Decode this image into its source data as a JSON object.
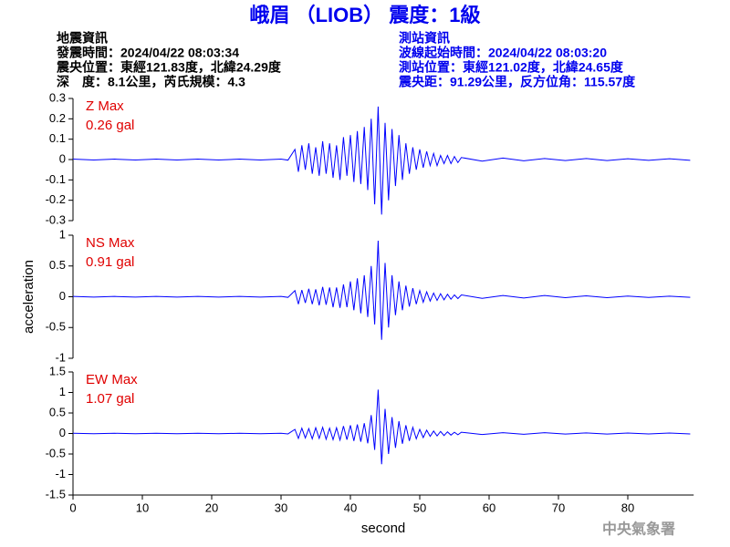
{
  "title": "峨眉 （LIOB） 震度：1級",
  "quake_info": [
    "地震資訊",
    "發震時間：2024/04/22 08:03:34",
    "震央位置：東經121.83度，北緯24.29度",
    "深　度：8.1公里，芮氏規模：4.3"
  ],
  "station_info": [
    "測站資訊",
    "波線起始時間：2024/04/22 08:03:20",
    "測站位置：東經121.02度，北緯24.65度",
    "震央距：91.29公里，反方位角：115.57度"
  ],
  "footer": "中央氣象署",
  "chart_data": [
    {
      "type": "line",
      "max_label": "Z Max",
      "max_value": "0.26 gal",
      "color": "#0000ff",
      "xlim": [
        0,
        89.5
      ],
      "ylim": [
        -0.3,
        0.3
      ],
      "yticks": [
        -0.3,
        -0.2,
        -0.1,
        0,
        0.1,
        0.2,
        0.3
      ],
      "x": [
        0,
        3,
        6,
        9,
        12,
        15,
        18,
        21,
        24,
        27,
        30,
        31,
        32,
        32.5,
        33,
        33.5,
        34,
        34.5,
        35,
        35.5,
        36,
        36.5,
        37,
        37.5,
        38,
        38.5,
        39,
        39.5,
        40,
        40.5,
        41,
        41.5,
        42,
        42.5,
        43,
        43.5,
        44,
        44.5,
        45,
        45.5,
        46,
        46.5,
        47,
        47.5,
        48,
        48.5,
        49,
        49.5,
        50,
        50.5,
        51,
        51.5,
        52,
        52.5,
        53,
        53.5,
        54,
        54.5,
        55,
        55.5,
        56,
        59,
        62,
        65,
        68,
        71,
        74,
        77,
        80,
        83,
        86,
        89
      ],
      "values": [
        0.002,
        -0.002,
        0.002,
        -0.002,
        0.002,
        -0.002,
        0.002,
        -0.002,
        0.002,
        -0.002,
        0.002,
        -0.003,
        0.05,
        -0.06,
        0.07,
        -0.05,
        0.08,
        -0.07,
        0.06,
        -0.08,
        0.09,
        -0.07,
        0.08,
        -0.09,
        0.07,
        -0.1,
        0.11,
        -0.08,
        0.12,
        -0.11,
        0.14,
        -0.12,
        0.16,
        -0.15,
        0.2,
        -0.22,
        0.26,
        -0.27,
        0.18,
        -0.2,
        0.15,
        -0.13,
        0.12,
        -0.1,
        0.08,
        -0.07,
        0.06,
        -0.05,
        0.05,
        -0.04,
        0.04,
        -0.03,
        0.03,
        -0.03,
        0.02,
        -0.02,
        0.02,
        -0.02,
        0.015,
        -0.015,
        0.01,
        -0.008,
        0.007,
        -0.006,
        0.005,
        -0.005,
        0.005,
        -0.005,
        0.004,
        -0.004,
        0.004,
        -0.004
      ]
    },
    {
      "type": "line",
      "max_label": "NS Max",
      "max_value": "0.91 gal",
      "ylabel": "acceleration",
      "color": "#0000ff",
      "xlim": [
        0,
        89.5
      ],
      "ylim": [
        -1,
        1
      ],
      "yticks": [
        -1,
        -0.5,
        0,
        0.5,
        1
      ],
      "x": [
        0,
        3,
        6,
        9,
        12,
        15,
        18,
        21,
        24,
        27,
        30,
        31,
        32,
        32.5,
        33,
        33.5,
        34,
        34.5,
        35,
        35.5,
        36,
        36.5,
        37,
        37.5,
        38,
        38.5,
        39,
        39.5,
        40,
        40.5,
        41,
        41.5,
        42,
        42.5,
        43,
        43.5,
        44,
        44.5,
        45,
        45.5,
        46,
        46.5,
        47,
        47.5,
        48,
        48.5,
        49,
        49.5,
        50,
        50.5,
        51,
        51.5,
        52,
        52.5,
        53,
        53.5,
        54,
        54.5,
        55,
        55.5,
        56,
        59,
        62,
        65,
        68,
        71,
        74,
        77,
        80,
        83,
        86,
        89
      ],
      "values": [
        0.005,
        -0.005,
        0.005,
        -0.005,
        0.005,
        -0.005,
        0.005,
        -0.005,
        0.005,
        -0.005,
        0.005,
        -0.01,
        0.1,
        -0.12,
        0.11,
        -0.1,
        0.13,
        -0.12,
        0.12,
        -0.14,
        0.16,
        -0.13,
        0.15,
        -0.17,
        0.15,
        -0.18,
        0.2,
        -0.17,
        0.25,
        -0.22,
        0.3,
        -0.27,
        0.35,
        -0.33,
        0.5,
        -0.45,
        0.91,
        -0.7,
        0.55,
        -0.5,
        0.35,
        -0.3,
        0.25,
        -0.22,
        0.18,
        -0.16,
        0.14,
        -0.12,
        0.1,
        -0.09,
        0.08,
        -0.07,
        0.06,
        -0.06,
        0.05,
        -0.05,
        0.04,
        -0.04,
        0.03,
        -0.03,
        0.03,
        -0.025,
        0.02,
        -0.02,
        0.02,
        -0.015,
        0.015,
        -0.015,
        0.012,
        -0.012,
        0.01,
        -0.01
      ]
    },
    {
      "type": "line",
      "max_label": "EW Max",
      "max_value": "1.07 gal",
      "xlabel": "second",
      "color": "#0000ff",
      "xlim": [
        0,
        89.5
      ],
      "ylim": [
        -1.5,
        1.5
      ],
      "yticks": [
        -1.5,
        -1,
        -0.5,
        0,
        0.5,
        1,
        1.5
      ],
      "xticks": [
        0,
        10,
        20,
        30,
        40,
        50,
        60,
        70,
        80
      ],
      "x": [
        0,
        3,
        6,
        9,
        12,
        15,
        18,
        21,
        24,
        27,
        30,
        31,
        32,
        32.5,
        33,
        33.5,
        34,
        34.5,
        35,
        35.5,
        36,
        36.5,
        37,
        37.5,
        38,
        38.5,
        39,
        39.5,
        40,
        40.5,
        41,
        41.5,
        42,
        42.5,
        43,
        43.5,
        44,
        44.5,
        45,
        45.5,
        46,
        46.5,
        47,
        47.5,
        48,
        48.5,
        49,
        49.5,
        50,
        50.5,
        51,
        51.5,
        52,
        52.5,
        53,
        53.5,
        54,
        54.5,
        55,
        55.5,
        56,
        59,
        62,
        65,
        68,
        71,
        74,
        77,
        80,
        83,
        86,
        89
      ],
      "values": [
        0.005,
        -0.005,
        0.005,
        -0.005,
        0.005,
        -0.005,
        0.005,
        -0.005,
        0.005,
        -0.005,
        0.005,
        -0.01,
        0.1,
        -0.12,
        0.13,
        -0.11,
        0.12,
        -0.13,
        0.14,
        -0.12,
        0.15,
        -0.14,
        0.13,
        -0.15,
        0.14,
        -0.16,
        0.18,
        -0.15,
        0.2,
        -0.18,
        0.22,
        -0.2,
        0.25,
        -0.24,
        0.45,
        -0.4,
        1.07,
        -0.75,
        0.6,
        -0.5,
        0.4,
        -0.35,
        0.3,
        -0.25,
        0.2,
        -0.18,
        0.15,
        -0.13,
        0.1,
        -0.1,
        0.08,
        -0.07,
        0.06,
        -0.06,
        0.05,
        -0.05,
        0.04,
        -0.04,
        0.03,
        -0.03,
        0.03,
        -0.025,
        0.02,
        -0.02,
        0.02,
        -0.015,
        0.015,
        -0.015,
        0.012,
        -0.012,
        0.01,
        -0.01
      ]
    }
  ]
}
